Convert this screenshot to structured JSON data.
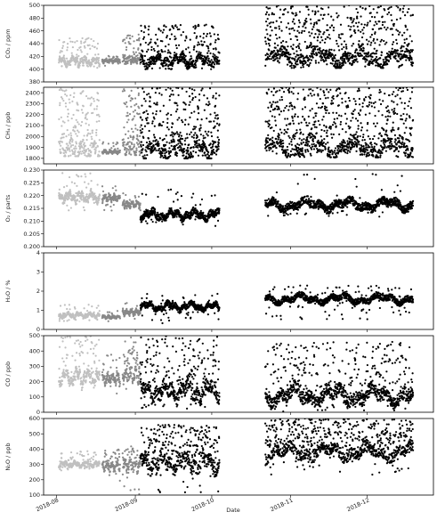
{
  "chart_data": {
    "type": "scatter",
    "xlabel": "Date",
    "x_ticks": [
      "2018-08",
      "2018-09",
      "2018-10",
      "2018-11",
      "2018-12"
    ],
    "x_range": [
      "2018-07-27",
      "2018-12-27"
    ],
    "series_colors": [
      "#c0c0c0",
      "#888888",
      "#000000"
    ],
    "periods": [
      {
        "name": "p1",
        "start": "2018-08-02",
        "end": "2018-08-18",
        "color": "#c0c0c0"
      },
      {
        "name": "p2",
        "start": "2018-08-19",
        "end": "2018-08-26",
        "color": "#888888"
      },
      {
        "name": "p3",
        "start": "2018-08-27",
        "end": "2018-09-03",
        "color": "#888888"
      },
      {
        "name": "p4",
        "start": "2018-09-03",
        "end": "2018-10-04",
        "color": "#000000"
      },
      {
        "name": "p5",
        "start": "2018-10-22",
        "end": "2018-12-19",
        "color": "#000000"
      }
    ],
    "panels": [
      {
        "ylabel": "CO₂ / ppm",
        "ylim": [
          380,
          500
        ],
        "yticks": [
          "380",
          "400",
          "420",
          "440",
          "460",
          "480",
          "500"
        ],
        "segments": [
          {
            "period": "p1",
            "base": 412,
            "low": 402,
            "high": 450,
            "spike": 0.3
          },
          {
            "period": "p2",
            "base": 413,
            "low": 405,
            "high": 425,
            "spike": 0.1
          },
          {
            "period": "p3",
            "base": 415,
            "low": 408,
            "high": 455,
            "spike": 0.35
          },
          {
            "period": "p4",
            "base": 413,
            "low": 400,
            "high": 470,
            "spike": 0.35
          },
          {
            "period": "p5",
            "base": 418,
            "low": 402,
            "high": 500,
            "spike": 0.45
          }
        ]
      },
      {
        "ylabel": "CH₄ / ppb",
        "ylim": [
          1750,
          2450
        ],
        "yticks": [
          "1800",
          "1900",
          "2000",
          "2100",
          "2200",
          "2300",
          "2400"
        ],
        "segments": [
          {
            "period": "p1",
            "base": 1880,
            "low": 1820,
            "high": 2450,
            "spike": 0.45
          },
          {
            "period": "p2",
            "base": 1860,
            "low": 1830,
            "high": 1950,
            "spike": 0.15
          },
          {
            "period": "p3",
            "base": 1900,
            "low": 1830,
            "high": 2450,
            "spike": 0.5
          },
          {
            "period": "p4",
            "base": 1880,
            "low": 1800,
            "high": 2450,
            "spike": 0.5
          },
          {
            "period": "p5",
            "base": 1900,
            "low": 1810,
            "high": 2450,
            "spike": 0.5
          }
        ]
      },
      {
        "ylabel": "O₂ / parts",
        "ylim": [
          0.2,
          0.23
        ],
        "yticks": [
          "0.200",
          "0.205",
          "0.210",
          "0.215",
          "0.220",
          "0.225",
          "0.230"
        ],
        "segments": [
          {
            "period": "p1",
            "base": 0.2195,
            "low": 0.214,
            "high": 0.229,
            "spike": 0.1
          },
          {
            "period": "p2",
            "base": 0.219,
            "low": 0.214,
            "high": 0.224,
            "spike": 0.05
          },
          {
            "period": "p3",
            "base": 0.2165,
            "low": 0.213,
            "high": 0.221,
            "spike": 0.05
          },
          {
            "period": "p4",
            "base": 0.2125,
            "low": 0.208,
            "high": 0.2225,
            "spike": 0.05
          },
          {
            "period": "p5",
            "base": 0.2165,
            "low": 0.2115,
            "high": 0.229,
            "spike": 0.03
          }
        ]
      },
      {
        "ylabel": "H₂O / %",
        "ylim": [
          0,
          4
        ],
        "yticks": [
          "0",
          "1",
          "2",
          "3",
          "4"
        ],
        "segments": [
          {
            "period": "p1",
            "base": 0.75,
            "low": 0.4,
            "high": 1.3,
            "spike": 0.05
          },
          {
            "period": "p2",
            "base": 0.65,
            "low": 0.4,
            "high": 1.0,
            "spike": 0.05
          },
          {
            "period": "p3",
            "base": 0.9,
            "low": 0.35,
            "high": 1.4,
            "spike": 0.05
          },
          {
            "period": "p4",
            "base": 1.2,
            "low": 0.3,
            "high": 1.9,
            "spike": 0.05
          },
          {
            "period": "p5",
            "base": 1.6,
            "low": 0.5,
            "high": 2.3,
            "spike": 0.05
          }
        ]
      },
      {
        "ylabel": "CO / ppb",
        "ylim": [
          0,
          500
        ],
        "yticks": [
          "0",
          "100",
          "200",
          "300",
          "400",
          "500"
        ],
        "segments": [
          {
            "period": "p1",
            "base": 230,
            "low": 130,
            "high": 500,
            "spike": 0.25
          },
          {
            "period": "p2",
            "base": 220,
            "low": 120,
            "high": 380,
            "spike": 0.2
          },
          {
            "period": "p3",
            "base": 250,
            "low": 140,
            "high": 500,
            "spike": 0.3
          },
          {
            "period": "p4",
            "base": 140,
            "low": 10,
            "high": 500,
            "spike": 0.3
          },
          {
            "period": "p5",
            "base": 110,
            "low": 0,
            "high": 460,
            "spike": 0.25
          }
        ]
      },
      {
        "ylabel": "N₂O / ppb",
        "ylim": [
          100,
          600
        ],
        "yticks": [
          "100",
          "200",
          "300",
          "400",
          "500",
          "600"
        ],
        "segments": [
          {
            "period": "p1",
            "base": 300,
            "low": 260,
            "high": 390,
            "spike": 0.15
          },
          {
            "period": "p2",
            "base": 290,
            "low": 160,
            "high": 400,
            "spike": 0.3
          },
          {
            "period": "p3",
            "base": 295,
            "low": 100,
            "high": 420,
            "spike": 0.3
          },
          {
            "period": "p4",
            "base": 310,
            "low": 110,
            "high": 560,
            "spike": 0.45
          },
          {
            "period": "p5",
            "base": 380,
            "low": 230,
            "high": 600,
            "spike": 0.4
          }
        ]
      }
    ]
  }
}
